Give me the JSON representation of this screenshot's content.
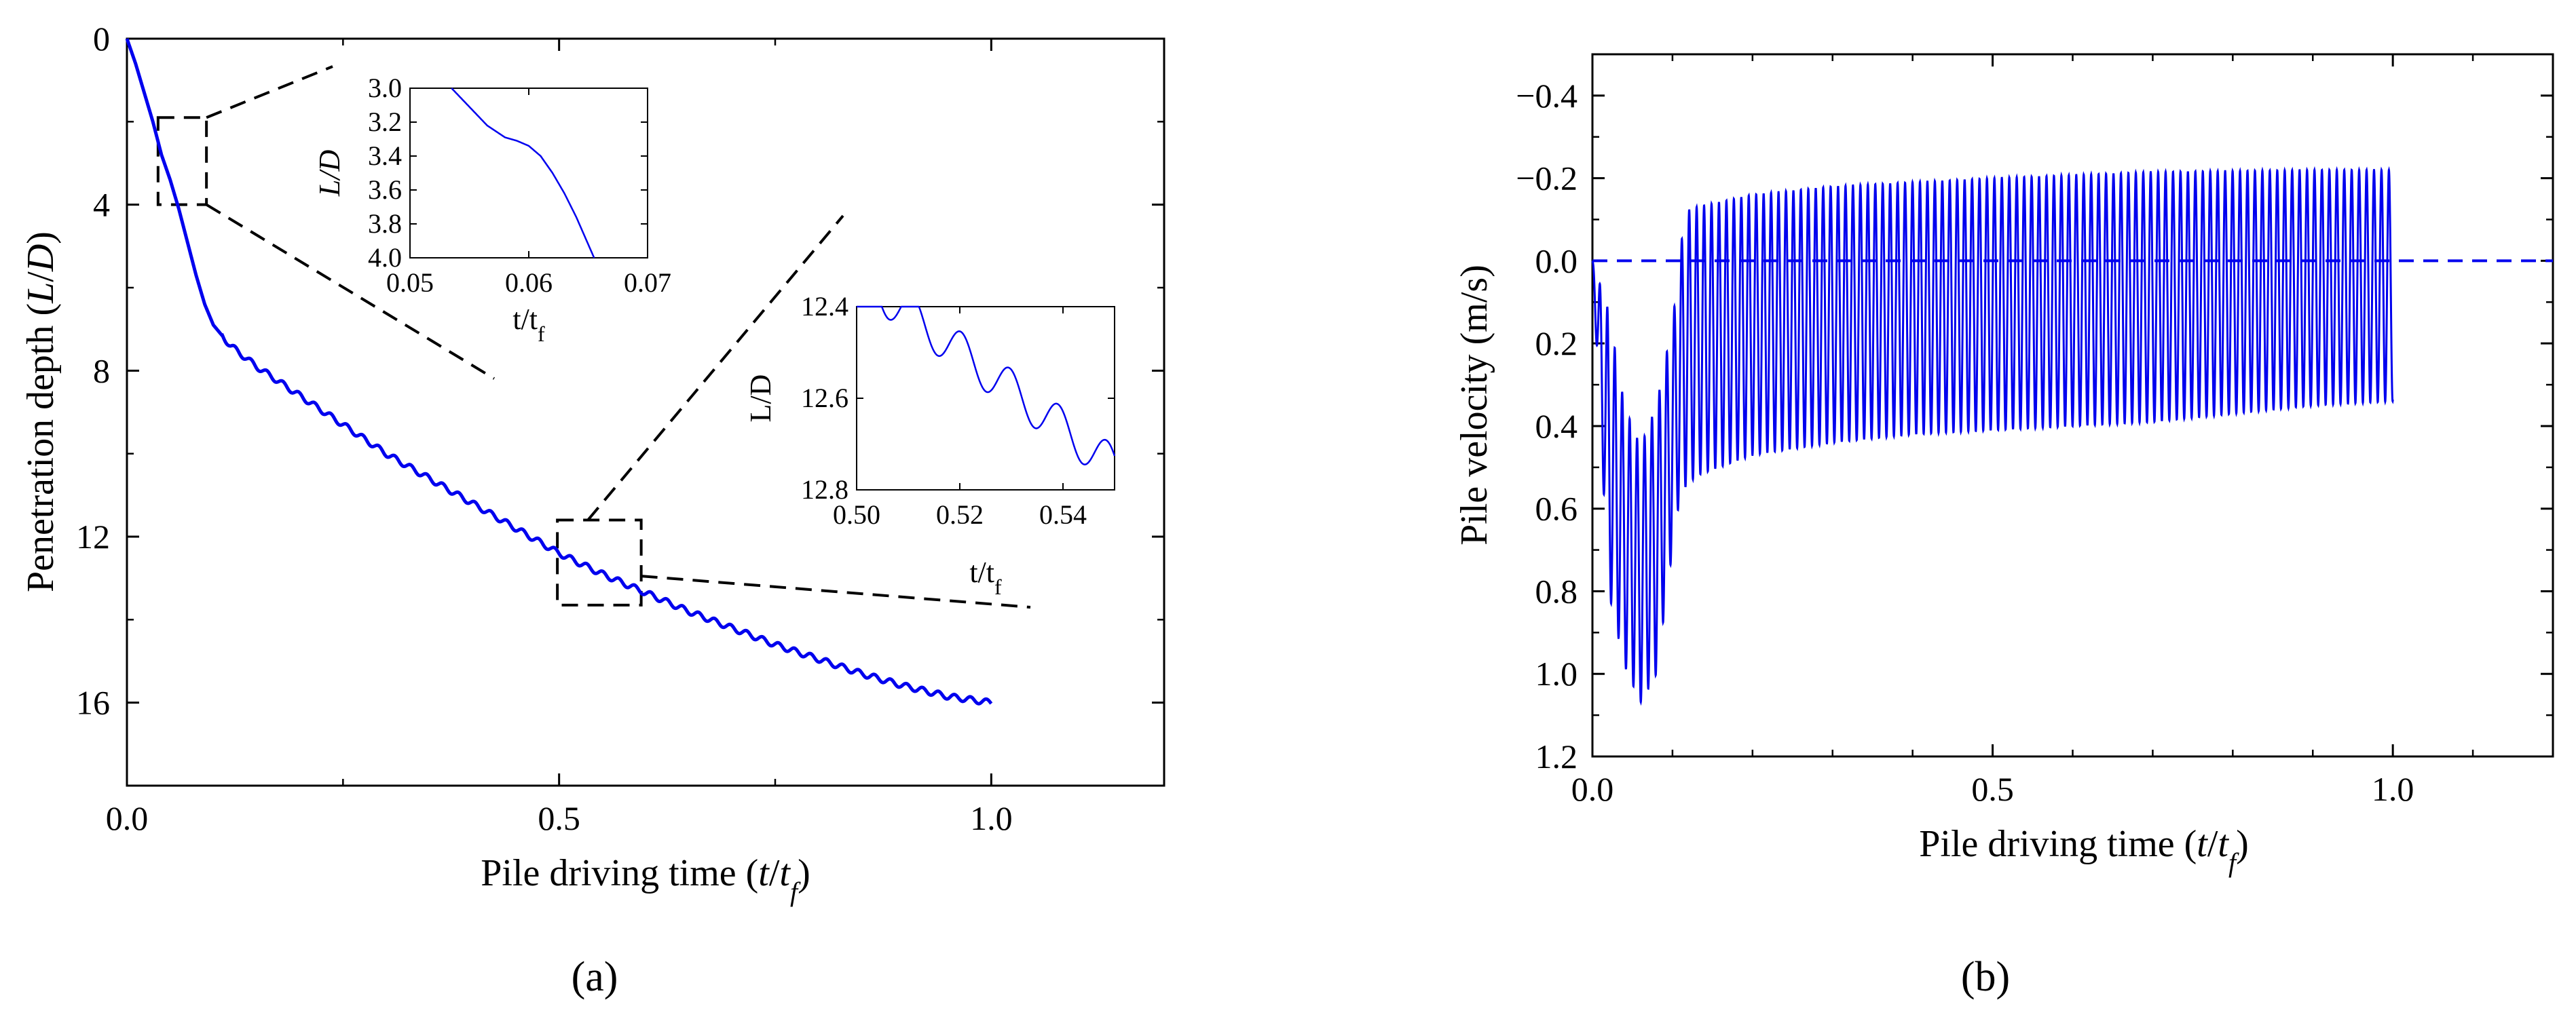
{
  "chart_data": [
    {
      "id": "a",
      "type": "line",
      "panel_label": "(a)",
      "xlabel": "Pile driving time (t/t_f)",
      "ylabel": "Penetration depth (L/D)",
      "xlabel_parts": {
        "pre": "Pile driving time (",
        "var": "t",
        "slash": "/",
        "var2": "t",
        "sub": "f",
        "post": ")"
      },
      "ylabel_parts": {
        "pre": "Penetration depth (",
        "var": "L",
        "slash": "/",
        "var2": "D",
        "post": ")"
      },
      "xlim": [
        0,
        1.2
      ],
      "ylim": [
        0,
        18
      ],
      "y_inverted": true,
      "xticks": [
        0.0,
        0.5,
        1.0
      ],
      "xtick_labels": [
        "0.0",
        "0.5",
        "1.0"
      ],
      "yticks": [
        0,
        4,
        8,
        12,
        16
      ],
      "ytick_labels": [
        "0",
        "4",
        "8",
        "12",
        "16"
      ],
      "series": [
        {
          "name": "Penetration depth",
          "color": "#0000ee",
          "points": [
            [
              0.0,
              0.0
            ],
            [
              0.01,
              0.6
            ],
            [
              0.02,
              1.3
            ],
            [
              0.03,
              2.0
            ],
            [
              0.04,
              2.8
            ],
            [
              0.05,
              3.4
            ],
            [
              0.06,
              4.1
            ],
            [
              0.07,
              4.9
            ],
            [
              0.08,
              5.7
            ],
            [
              0.09,
              6.4
            ],
            [
              0.1,
              6.9
            ],
            [
              0.12,
              7.4
            ],
            [
              0.15,
              7.9
            ],
            [
              0.2,
              8.6
            ],
            [
              0.25,
              9.3
            ],
            [
              0.3,
              10.0
            ],
            [
              0.35,
              10.6
            ],
            [
              0.4,
              11.2
            ],
            [
              0.45,
              11.8
            ],
            [
              0.5,
              12.4
            ],
            [
              0.55,
              12.9
            ],
            [
              0.6,
              13.35
            ],
            [
              0.65,
              13.8
            ],
            [
              0.7,
              14.2
            ],
            [
              0.75,
              14.6
            ],
            [
              0.8,
              14.95
            ],
            [
              0.85,
              15.3
            ],
            [
              0.9,
              15.6
            ],
            [
              0.95,
              15.85
            ],
            [
              1.0,
              16.0
            ]
          ],
          "oscillation_amplitude": 0.07,
          "oscillation_period": 0.0185,
          "oscillation_start": 0.11
        }
      ],
      "zoom_boxes": [
        {
          "x_range": [
            0.036,
            0.092
          ],
          "y_range": [
            1.9,
            4.0
          ]
        },
        {
          "x_range": [
            0.498,
            0.595
          ],
          "y_range": [
            11.6,
            13.65
          ]
        }
      ],
      "insets": [
        {
          "xlim": [
            0.05,
            0.07
          ],
          "ylim": [
            3.0,
            4.0
          ],
          "y_inverted": true,
          "xticks": [
            0.05,
            0.06,
            0.07
          ],
          "xtick_labels": [
            "0.05",
            "0.06",
            "0.07"
          ],
          "yticks": [
            3.0,
            3.2,
            3.4,
            3.6,
            3.8,
            4.0
          ],
          "ytick_labels": [
            "3.0",
            "3.2",
            "3.4",
            "3.6",
            "3.8",
            "4.0"
          ],
          "xlabel": "t/t_f",
          "xlabel_parts": {
            "main": "t/t",
            "sub": "f"
          },
          "ylabel": "L/D",
          "points": [
            [
              0.0535,
              3.0
            ],
            [
              0.055,
              3.11
            ],
            [
              0.0565,
              3.22
            ],
            [
              0.058,
              3.29
            ],
            [
              0.059,
              3.31
            ],
            [
              0.06,
              3.34
            ],
            [
              0.061,
              3.4
            ],
            [
              0.062,
              3.5
            ],
            [
              0.063,
              3.62
            ],
            [
              0.064,
              3.76
            ],
            [
              0.0655,
              4.0
            ]
          ]
        },
        {
          "xlim": [
            0.5,
            0.55
          ],
          "ylim": [
            12.4,
            12.8
          ],
          "y_inverted": true,
          "xticks": [
            0.5,
            0.52,
            0.54
          ],
          "xtick_labels": [
            "0.50",
            "0.52",
            "0.54"
          ],
          "yticks": [
            12.4,
            12.6,
            12.8
          ],
          "ytick_labels": [
            "12.4",
            "12.6",
            "12.8"
          ],
          "xlabel": "t/t_f",
          "xlabel_parts": {
            "main": "t/t",
            "sub": "f"
          },
          "ylabel": "L/D",
          "trend": {
            "x0": 0.5,
            "y0": 12.33,
            "slope": 8.4
          },
          "oscillation_amplitude": 0.045,
          "oscillation_period": 0.0094,
          "oscillation_phase": 0.0015
        }
      ]
    },
    {
      "id": "b",
      "type": "line",
      "panel_label": "(b)",
      "xlabel": "Pile driving time (t/t_f)",
      "ylabel": "Pile velocity (m/s)",
      "xlabel_parts": {
        "pre": "Pile driving time (",
        "var": "t",
        "slash": "/",
        "var2": "t",
        "sub": "f",
        "post": ")"
      },
      "xlim": [
        0,
        1.2
      ],
      "ylim": [
        -0.5,
        1.2
      ],
      "y_inverted": true,
      "xticks": [
        0.0,
        0.5,
        1.0
      ],
      "xtick_labels": [
        "0.0",
        "0.5",
        "1.0"
      ],
      "yticks": [
        -0.4,
        -0.2,
        0.0,
        0.2,
        0.4,
        0.6,
        0.8,
        1.0,
        1.2
      ],
      "ytick_labels": [
        "−0.4",
        "−0.2",
        "0.0",
        "0.2",
        "0.4",
        "0.6",
        "0.8",
        "1.0",
        "1.2"
      ],
      "reference_line": {
        "y": 0.0,
        "style": "dashed",
        "color": "#0000ee"
      },
      "series": [
        {
          "name": "Pile velocity",
          "color": "#0000ee",
          "oscillation_period": 0.0093,
          "envelope_upper": [
            [
              0.0,
              0.0
            ],
            [
              0.02,
              0.12
            ],
            [
              0.04,
              0.35
            ],
            [
              0.06,
              0.45
            ],
            [
              0.08,
              0.35
            ],
            [
              0.1,
              0.15
            ],
            [
              0.11,
              -0.02
            ],
            [
              0.115,
              -0.12
            ],
            [
              0.13,
              -0.13
            ],
            [
              0.2,
              -0.16
            ],
            [
              0.3,
              -0.18
            ],
            [
              0.4,
              -0.19
            ],
            [
              0.5,
              -0.2
            ],
            [
              0.7,
              -0.215
            ],
            [
              0.9,
              -0.22
            ],
            [
              1.0,
              -0.22
            ]
          ],
          "envelope_lower": [
            [
              0.0,
              0.0
            ],
            [
              0.02,
              0.8
            ],
            [
              0.04,
              0.98
            ],
            [
              0.06,
              1.07
            ],
            [
              0.08,
              1.0
            ],
            [
              0.1,
              0.7
            ],
            [
              0.11,
              0.56
            ],
            [
              0.13,
              0.52
            ],
            [
              0.2,
              0.47
            ],
            [
              0.3,
              0.44
            ],
            [
              0.4,
              0.42
            ],
            [
              0.5,
              0.41
            ],
            [
              0.7,
              0.39
            ],
            [
              0.9,
              0.35
            ],
            [
              1.0,
              0.34
            ]
          ]
        }
      ]
    }
  ]
}
